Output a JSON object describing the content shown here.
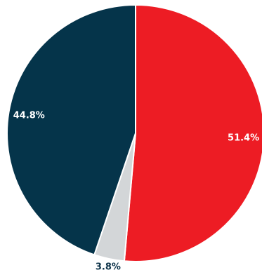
{
  "chart_data": {
    "type": "pie",
    "start_angle_deg": 0,
    "direction": "clockwise",
    "slices": [
      {
        "label": "51.4%",
        "value": 51.4,
        "color": "#ed1c24",
        "label_color": "#ffffff",
        "label_position": "inside"
      },
      {
        "label": "3.8%",
        "value": 3.8,
        "color": "#d3d6d8",
        "label_color": "#0d3349",
        "label_position": "outside"
      },
      {
        "label": "44.8%",
        "value": 44.8,
        "color": "#05344a",
        "label_color": "#ffffff",
        "label_position": "inside"
      }
    ],
    "title": "",
    "legend": "none"
  }
}
